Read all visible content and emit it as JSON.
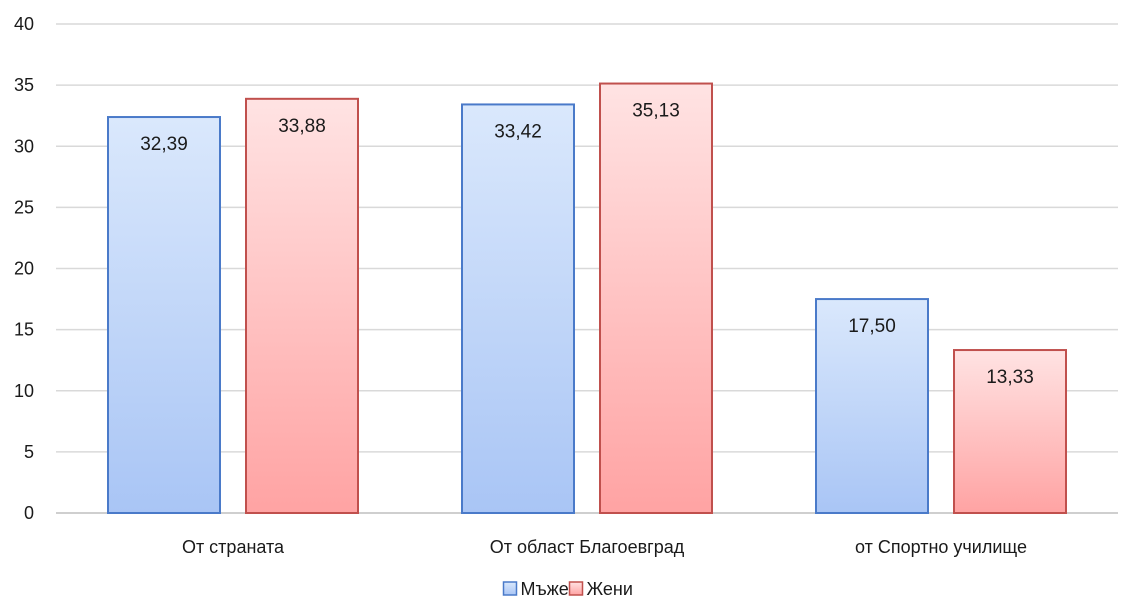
{
  "chart_data": {
    "type": "bar",
    "title": "",
    "xlabel": "",
    "ylabel": "",
    "categories": [
      "От страната",
      "От област Благоевград",
      "от Спортно училище"
    ],
    "series": [
      {
        "name": "Мъже",
        "values": [
          32.39,
          33.42,
          17.5
        ],
        "labels": [
          "32,39",
          "33,42",
          "17,50"
        ],
        "color_top": "#dae8fc",
        "color_bottom": "#a9c5f5",
        "border": "#4a7ac9"
      },
      {
        "name": "Жени",
        "values": [
          33.88,
          35.13,
          13.33
        ],
        "labels": [
          "33,88",
          "35,13",
          "13,33"
        ],
        "color_top": "#ffe3e3",
        "color_bottom": "#ffa3a3",
        "border": "#c0504d"
      }
    ],
    "ylim": [
      0,
      40
    ],
    "yticks": [
      "0",
      "5",
      "10",
      "15",
      "20",
      "25",
      "30",
      "35",
      "40"
    ],
    "grid": true,
    "legend_position": "bottom"
  }
}
